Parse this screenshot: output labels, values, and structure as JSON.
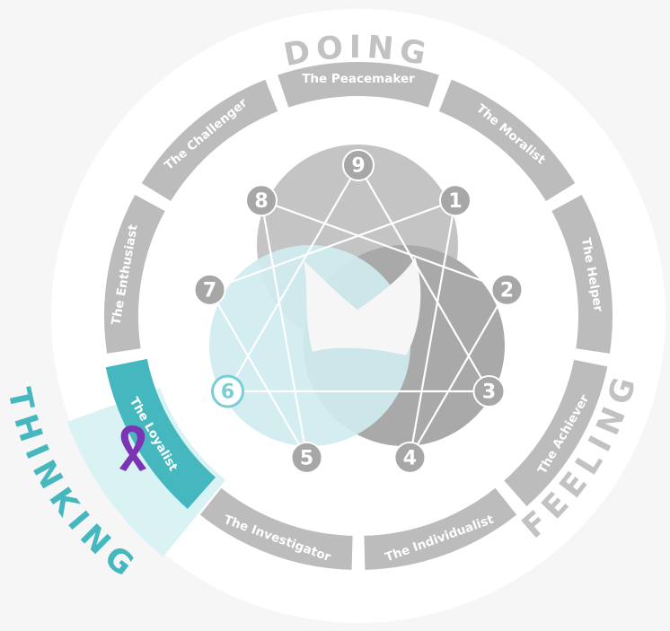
{
  "colors": {
    "background": "#f6f6f6",
    "outer_disc": "#ffffff",
    "segment": "#bcbcbc",
    "segment_active": "#45b8bf",
    "thinking_wedge": "#d9f2f4",
    "thinking_text": "#45b8bf",
    "section_text": "#c2c2c2",
    "circle_gray_light": "#c4c4c4",
    "circle_gray_dark": "#a9a9a9",
    "circle_teal": "#cfecef",
    "inner_white": "#f6f6f6",
    "node": "#a7a7a7",
    "node_active_fill": "#ffffff",
    "node_active": "#78cfd3",
    "lines": "#ffffff",
    "ribbon": "#7b35b4"
  },
  "sections": {
    "doing": "DOING",
    "feeling": "FEELING",
    "thinking": "THINKING"
  },
  "types": [
    {
      "number": "9",
      "label": "The Peacemaker"
    },
    {
      "number": "1",
      "label": "The Moralist"
    },
    {
      "number": "2",
      "label": "The Helper"
    },
    {
      "number": "3",
      "label": "The Achiever"
    },
    {
      "number": "4",
      "label": "The Individualist"
    },
    {
      "number": "5",
      "label": "The Investigator"
    },
    {
      "number": "6",
      "label": "The Loyalist"
    },
    {
      "number": "7",
      "label": "The Enthusiast"
    },
    {
      "number": "8",
      "label": "The Challenger"
    }
  ],
  "selected_type": "6",
  "ribbon_icon": "awareness-ribbon-icon"
}
